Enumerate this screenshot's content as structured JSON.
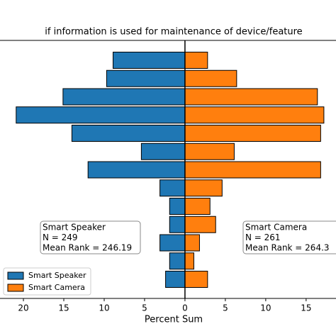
{
  "chart_data": {
    "type": "diverging_barh",
    "title": "if information is used for maintenance of device/feature",
    "x_label": "Percent Sum",
    "series": [
      {
        "name": "Smart Speaker",
        "color": "#1f77b4",
        "values": [
          -8.9,
          -9.7,
          -15.1,
          -20.9,
          -14.0,
          -5.4,
          -12.0,
          -3.1,
          -1.9,
          -1.9,
          -3.1,
          -1.9,
          -2.4
        ]
      },
      {
        "name": "Smart Camera",
        "color": "#ff7f0e",
        "values": [
          2.8,
          6.4,
          16.4,
          17.2,
          16.8,
          6.1,
          16.8,
          4.6,
          3.1,
          3.8,
          1.8,
          1.1,
          2.8
        ]
      }
    ],
    "xlim": [
      -22.9,
      18.7
    ],
    "xticks": [
      {
        "value": -20,
        "label": "20"
      },
      {
        "value": -15,
        "label": "15"
      },
      {
        "value": -10,
        "label": "10"
      },
      {
        "value": -5,
        "label": "5"
      },
      0,
      5,
      10,
      15
    ],
    "annotations": [
      {
        "lines": [
          "Smart Speaker",
          "N = 249",
          "Mean Rank = 246.19"
        ]
      },
      {
        "lines": [
          "Smart Camera",
          "N = 261",
          "Mean Rank = 264.3"
        ]
      }
    ],
    "legend": "lower left"
  }
}
